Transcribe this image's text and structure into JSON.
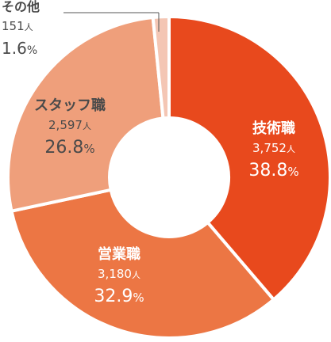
{
  "chart_data": {
    "type": "pie",
    "donut": true,
    "categories": [
      "技術職",
      "営業職",
      "スタッフ職",
      "その他"
    ],
    "counts": [
      "3,752",
      "3,180",
      "2,597",
      "151"
    ],
    "count_unit": "人",
    "values": [
      38.8,
      32.9,
      26.8,
      1.6
    ],
    "percent_unit": "%",
    "colors": [
      "#e8491d",
      "#ec7644",
      "#ef9f7b",
      "#f4c6b4"
    ],
    "label_colors": [
      "#ffffff",
      "#ffffff",
      "#4a4a4a",
      "#4a4a4a"
    ]
  }
}
